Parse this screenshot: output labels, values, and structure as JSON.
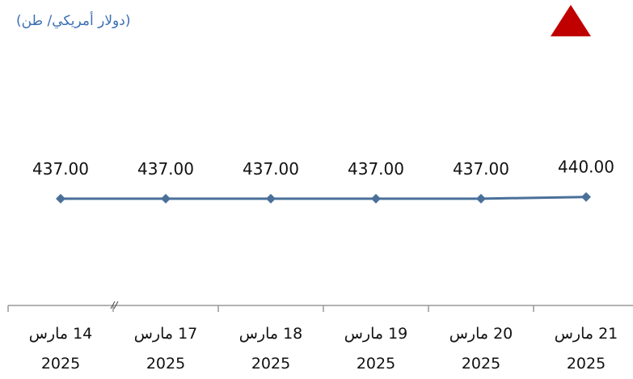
{
  "chart_data": {
    "type": "line",
    "title": "(دولار أمريكي/ طن)",
    "categories": [
      "14 مارس\n2025",
      "17 مارس\n2025",
      "18 مارس\n2025",
      "19 مارس\n2025",
      "20 مارس\n2025",
      "21 مارس\n2025"
    ],
    "values": [
      437,
      437,
      437,
      437,
      437,
      440
    ],
    "value_labels": [
      "437.00",
      "437.00",
      "437.00",
      "437.00",
      "437.00",
      "440.00"
    ],
    "color": "#4a7099",
    "ylim": [
      250,
      700
    ]
  }
}
